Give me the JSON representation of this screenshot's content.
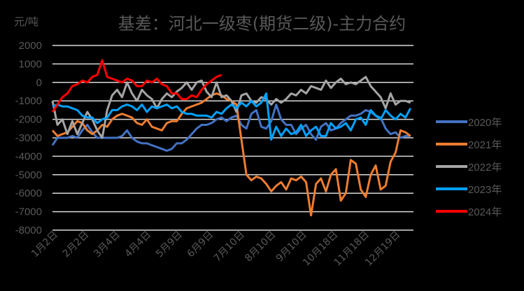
{
  "chart": {
    "title": "基差：河北一级枣(期货二级)-主力合约",
    "unit": "元/吨"
  },
  "chart_data": {
    "type": "line",
    "title": "基差：河北一级枣(期货二级)-主力合约",
    "ylabel": "元/吨",
    "xlabel": "",
    "ylim": [
      -8000,
      2000
    ],
    "yticks": [
      2000,
      1000,
      0,
      -1000,
      -2000,
      -3000,
      -4000,
      -5000,
      -6000,
      -7000,
      -8000
    ],
    "x_tick_labels": [
      "1月2日",
      "2月2日",
      "3月4日",
      "4月4日",
      "5月9日",
      "6月9日",
      "7月10日",
      "8月10日",
      "9月10日",
      "10月18日",
      "11月18日",
      "12月19日"
    ],
    "grid": true,
    "legend_position": "right",
    "x_note": "x values are day-of-year positions (0 = Jan 2, 363 = end of Dec)",
    "series": [
      {
        "name": "2020年",
        "color": "#4472C4",
        "x": [
          0,
          5,
          10,
          15,
          20,
          25,
          30,
          35,
          40,
          45,
          50,
          55,
          60,
          65,
          70,
          75,
          80,
          85,
          90,
          95,
          100,
          105,
          110,
          115,
          120,
          125,
          130,
          135,
          140,
          145,
          150,
          155,
          160,
          165,
          170,
          175,
          180,
          185,
          190,
          195,
          200,
          205,
          210,
          215,
          220,
          225,
          230,
          235,
          240,
          245,
          250,
          255,
          260,
          265,
          270,
          275,
          280,
          285,
          290,
          295,
          300,
          305,
          310,
          315,
          320,
          325,
          330,
          335,
          340,
          345,
          350,
          355,
          360
        ],
        "values": [
          -3400,
          -3000,
          -3000,
          -3000,
          -2900,
          -3000,
          -2600,
          -2300,
          -2700,
          -3000,
          -3000,
          -3000,
          -3000,
          -3000,
          -2900,
          -2600,
          -3000,
          -3200,
          -3300,
          -3300,
          -3400,
          -3500,
          -3600,
          -3700,
          -3600,
          -3300,
          -3300,
          -3100,
          -2800,
          -2500,
          -2300,
          -2300,
          -2200,
          -2000,
          -1900,
          -2100,
          -1900,
          -1800,
          -2300,
          -2500,
          -1700,
          -1500,
          -2400,
          -2500,
          -2100,
          -1200,
          -2000,
          -2300,
          -2300,
          -2800,
          -2500,
          -2300,
          -2800,
          -3100,
          -2400,
          -2200,
          -2600,
          -2500,
          -2200,
          -2000,
          -1800,
          -1800,
          -1700,
          -1500,
          -1600,
          -1800,
          -1900,
          -2500,
          -2800,
          -2700,
          -3000,
          -2900,
          -2900
        ]
      },
      {
        "name": "2021年",
        "color": "#ED7D31",
        "x": [
          0,
          5,
          10,
          15,
          20,
          25,
          30,
          35,
          40,
          45,
          50,
          55,
          60,
          65,
          70,
          75,
          80,
          85,
          90,
          95,
          100,
          105,
          110,
          115,
          120,
          125,
          130,
          135,
          140,
          145,
          150,
          155,
          160,
          165,
          170,
          175,
          180,
          185,
          190,
          195,
          200,
          205,
          210,
          215,
          220,
          225,
          230,
          235,
          240,
          245,
          250,
          255,
          260,
          265,
          270,
          275,
          280,
          285,
          290,
          295,
          300,
          305,
          310,
          315,
          320,
          325,
          330,
          335,
          340,
          345,
          350,
          355,
          360
        ],
        "values": [
          -2600,
          -2900,
          -2800,
          -2700,
          -2400,
          -2100,
          -2200,
          -2600,
          -2800,
          -2600,
          -2300,
          -2400,
          -2000,
          -1800,
          -1700,
          -1800,
          -1900,
          -2200,
          -2300,
          -2000,
          -2400,
          -2500,
          -2600,
          -2200,
          -2100,
          -2100,
          -1700,
          -1400,
          -1300,
          -1200,
          -1100,
          -900,
          -700,
          -600,
          -700,
          -900,
          -1000,
          -1200,
          -3100,
          -5000,
          -5300,
          -5100,
          -5200,
          -5500,
          -5900,
          -5600,
          -5400,
          -5800,
          -5200,
          -5300,
          -5100,
          -5400,
          -7200,
          -5500,
          -5200,
          -5900,
          -5000,
          -4700,
          -6400,
          -6000,
          -4200,
          -4400,
          -5800,
          -6200,
          -5000,
          -4500,
          -5800,
          -5600,
          -4300,
          -3800,
          -2600,
          -2700,
          -2900
        ]
      },
      {
        "name": "2022年",
        "color": "#A5A5A5",
        "x": [
          0,
          5,
          10,
          15,
          20,
          25,
          30,
          35,
          40,
          45,
          50,
          55,
          60,
          65,
          70,
          75,
          80,
          85,
          90,
          95,
          100,
          105,
          110,
          115,
          120,
          125,
          130,
          135,
          140,
          145,
          150,
          155,
          160,
          165,
          170,
          175,
          180,
          185,
          190,
          195,
          200,
          205,
          210,
          215,
          220,
          225,
          230,
          235,
          240,
          245,
          250,
          255,
          260,
          265,
          270,
          275,
          280,
          285,
          290,
          295,
          300,
          305,
          310,
          315,
          320,
          325,
          330,
          335,
          340,
          345,
          350,
          355,
          360
        ],
        "values": [
          -1000,
          -2300,
          -2000,
          -2800,
          -2100,
          -2800,
          -2200,
          -1600,
          -2000,
          -2600,
          -3000,
          -1500,
          -700,
          -400,
          -800,
          0,
          -600,
          -1000,
          -400,
          -700,
          -900,
          -1400,
          -900,
          -600,
          -800,
          -500,
          -300,
          0,
          -400,
          0,
          100,
          -500,
          -800,
          0,
          -800,
          -700,
          -1000,
          -1600,
          -700,
          -600,
          -1000,
          -1100,
          -800,
          -900,
          -1200,
          -900,
          -1100,
          -900,
          -600,
          -700,
          -400,
          -600,
          -200,
          -300,
          -400,
          100,
          -300,
          0,
          200,
          -100,
          0,
          -100,
          100,
          300,
          -200,
          -500,
          -800,
          -1400,
          -600,
          -1200,
          -1000,
          -1000,
          -1100
        ]
      },
      {
        "name": "2023年",
        "color": "#00A2FF",
        "x": [
          0,
          5,
          10,
          15,
          20,
          25,
          30,
          35,
          40,
          45,
          50,
          55,
          60,
          65,
          70,
          75,
          80,
          85,
          90,
          95,
          100,
          105,
          110,
          115,
          120,
          125,
          130,
          135,
          140,
          145,
          150,
          155,
          160,
          165,
          170,
          175,
          180,
          185,
          190,
          195,
          200,
          205,
          210,
          215,
          220,
          225,
          230,
          235,
          240,
          245,
          250,
          255,
          260,
          265,
          270,
          275,
          280,
          285,
          290,
          295,
          300,
          305,
          310,
          315,
          320,
          325,
          330,
          335,
          340,
          345,
          350,
          355,
          360
        ],
        "values": [
          -1300,
          -1200,
          -1300,
          -1300,
          -1400,
          -1500,
          -1800,
          -1900,
          -1900,
          -2200,
          -2000,
          -1900,
          -1500,
          -1500,
          -1300,
          -1200,
          -1300,
          -1500,
          -1200,
          -1600,
          -1300,
          -1400,
          -1300,
          -1200,
          -1400,
          -1300,
          -1600,
          -1700,
          -1700,
          -1800,
          -1800,
          -1800,
          -1900,
          -1600,
          -1700,
          -1400,
          -1200,
          -1400,
          -1100,
          -1300,
          -1000,
          -1300,
          -1100,
          -600,
          -3100,
          -2400,
          -2900,
          -2500,
          -2800,
          -2700,
          -2300,
          -2900,
          -2600,
          -2400,
          -2900,
          -2900,
          -2200,
          -2500,
          -2400,
          -2200,
          -2600,
          -2000,
          -1900,
          -2300,
          -1500,
          -1800,
          -2000,
          -1500,
          -1800,
          -2000,
          -1700,
          -1900,
          -1400
        ]
      },
      {
        "name": "2024年",
        "color": "#FF0000",
        "x": [
          0,
          5,
          10,
          15,
          20,
          25,
          30,
          35,
          40,
          45,
          50,
          55,
          60,
          65,
          70,
          75,
          80,
          85,
          90,
          95,
          100,
          105,
          110,
          115,
          120,
          125,
          130,
          135,
          140,
          145,
          150,
          155,
          160,
          165,
          170
        ],
        "values": [
          -1600,
          -1200,
          -800,
          -600,
          -200,
          -100,
          100,
          0,
          300,
          400,
          1200,
          300,
          200,
          100,
          0,
          200,
          100,
          -200,
          -200,
          100,
          0,
          200,
          -100,
          -200,
          -600,
          -600,
          -900,
          -900,
          -700,
          -800,
          -400,
          -100,
          100,
          300,
          400
        ]
      }
    ]
  },
  "legend": {
    "items": [
      {
        "label": "2020年",
        "color": "#4472C4"
      },
      {
        "label": "2021年",
        "color": "#ED7D31"
      },
      {
        "label": "2022年",
        "color": "#A5A5A5"
      },
      {
        "label": "2023年",
        "color": "#00A2FF"
      },
      {
        "label": "2024年",
        "color": "#FF0000"
      }
    ]
  },
  "axes": {
    "yticks": [
      "2000",
      "1000",
      "0",
      "-1000",
      "-2000",
      "-3000",
      "-4000",
      "-5000",
      "-6000",
      "-7000",
      "-8000"
    ],
    "xticks": [
      "1月2日",
      "2月2日",
      "3月4日",
      "4月4日",
      "5月9日",
      "6月9日",
      "7月10日",
      "8月10日",
      "9月10日",
      "10月18日",
      "11月18日",
      "12月19日"
    ]
  }
}
